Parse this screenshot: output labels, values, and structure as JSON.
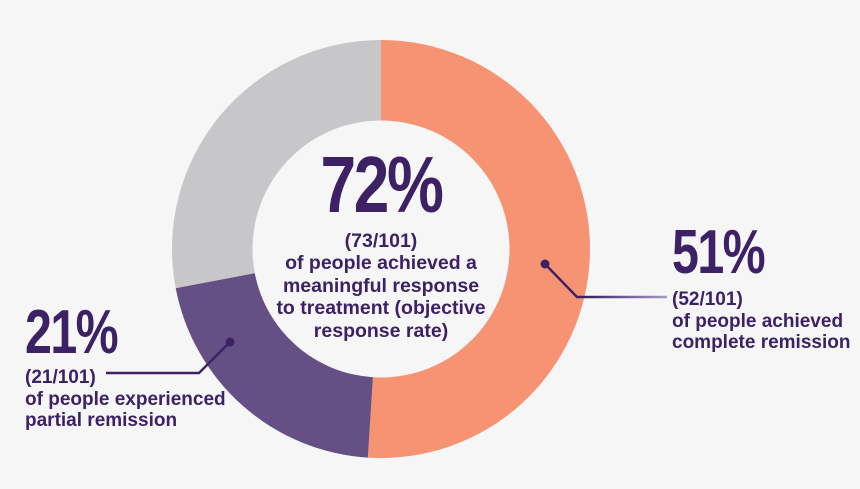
{
  "background": "#F7F6F7",
  "chart_data": {
    "type": "donut",
    "direction": "clockwise",
    "start_angle_deg": 0,
    "total_patients": 101,
    "text_color": "#3C2265",
    "leader_fade_color": "#A89BC8",
    "inner_background": "#F7F6F7",
    "center_label": {
      "percent": "72%",
      "fraction": "(73/101)",
      "lines": [
        "of people achieved a",
        "meaningful response",
        "to treatment (objective",
        "response rate)"
      ]
    },
    "segments": [
      {
        "name": "complete-remission",
        "percent": 51,
        "count": 52,
        "color": "#F59372",
        "label": {
          "percent": "51%",
          "fraction": "(52/101)",
          "lines": [
            "of people achieved",
            "complete remission"
          ]
        }
      },
      {
        "name": "partial-remission",
        "percent": 21,
        "count": 21,
        "color": "#655085",
        "label": {
          "percent": "21%",
          "fraction": "(21/101)",
          "lines": [
            "of people experienced",
            "partial remission"
          ]
        }
      },
      {
        "name": "remainder",
        "percent": 28,
        "color": "#C7C6C9",
        "label": null
      }
    ]
  }
}
